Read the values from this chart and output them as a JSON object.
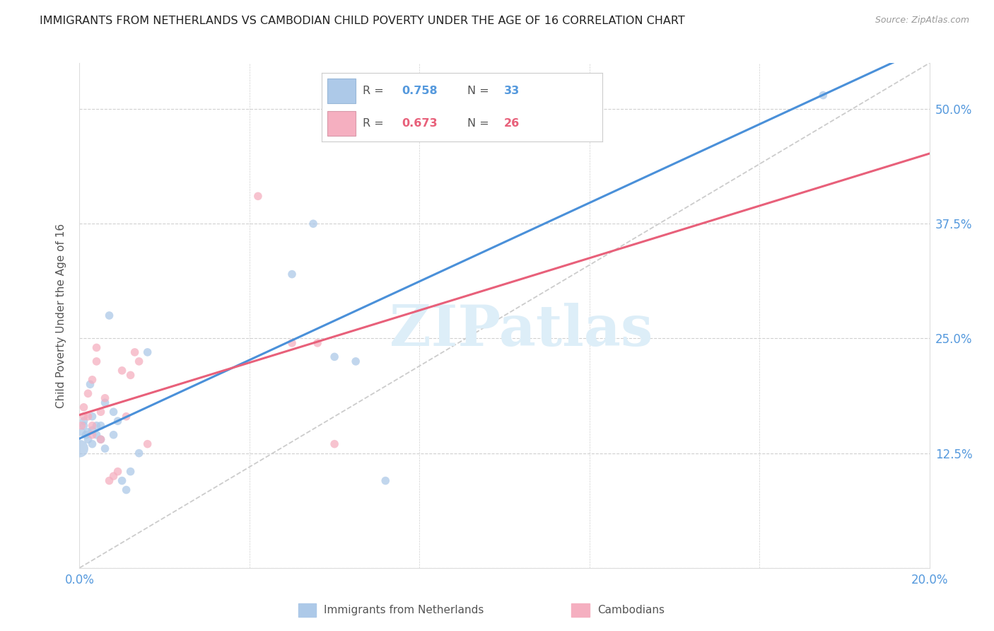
{
  "title": "IMMIGRANTS FROM NETHERLANDS VS CAMBODIAN CHILD POVERTY UNDER THE AGE OF 16 CORRELATION CHART",
  "source": "Source: ZipAtlas.com",
  "ylabel": "Child Poverty Under the Age of 16",
  "legend_label1": "Immigrants from Netherlands",
  "legend_label2": "Cambodians",
  "r1": "0.758",
  "n1": "33",
  "r2": "0.673",
  "n2": "26",
  "color1": "#adc9e8",
  "color2": "#f5afc0",
  "line_color1": "#4a90d9",
  "line_color2": "#e8607a",
  "axis_tick_color": "#5599dd",
  "background_color": "#ffffff",
  "grid_color": "#d0d0d0",
  "xlim": [
    0.0,
    0.2
  ],
  "ylim": [
    0.0,
    0.55
  ],
  "ytick_vals": [
    0.0,
    0.125,
    0.25,
    0.375,
    0.5
  ],
  "ytick_labels": [
    "",
    "12.5%",
    "25.0%",
    "37.5%",
    "50.0%"
  ],
  "xtick_vals": [
    0.0,
    0.04,
    0.08,
    0.12,
    0.16,
    0.2
  ],
  "xtick_labels": [
    "0.0%",
    "",
    "",
    "",
    "",
    "20.0%"
  ],
  "blue_x": [
    0.0005,
    0.001,
    0.001,
    0.0015,
    0.002,
    0.002,
    0.0025,
    0.003,
    0.003,
    0.003,
    0.004,
    0.004,
    0.005,
    0.005,
    0.006,
    0.006,
    0.007,
    0.008,
    0.008,
    0.009,
    0.01,
    0.011,
    0.012,
    0.014,
    0.016,
    0.05,
    0.055,
    0.06,
    0.065,
    0.072,
    0.11,
    0.175,
    0.0
  ],
  "blue_y": [
    0.148,
    0.155,
    0.16,
    0.145,
    0.14,
    0.148,
    0.2,
    0.135,
    0.15,
    0.165,
    0.145,
    0.155,
    0.14,
    0.155,
    0.13,
    0.18,
    0.275,
    0.145,
    0.17,
    0.16,
    0.095,
    0.085,
    0.105,
    0.125,
    0.235,
    0.32,
    0.375,
    0.23,
    0.225,
    0.095,
    0.48,
    0.515,
    0.13
  ],
  "blue_sizes": [
    70,
    70,
    70,
    70,
    70,
    70,
    70,
    70,
    70,
    70,
    70,
    70,
    70,
    70,
    70,
    70,
    70,
    70,
    70,
    70,
    70,
    70,
    70,
    70,
    70,
    70,
    70,
    70,
    70,
    70,
    70,
    70,
    320
  ],
  "pink_x": [
    0.0005,
    0.001,
    0.001,
    0.002,
    0.002,
    0.003,
    0.003,
    0.003,
    0.004,
    0.004,
    0.005,
    0.005,
    0.006,
    0.007,
    0.008,
    0.009,
    0.01,
    0.011,
    0.012,
    0.013,
    0.014,
    0.016,
    0.042,
    0.05,
    0.056,
    0.06
  ],
  "pink_y": [
    0.155,
    0.165,
    0.175,
    0.165,
    0.19,
    0.145,
    0.155,
    0.205,
    0.225,
    0.24,
    0.14,
    0.17,
    0.185,
    0.095,
    0.1,
    0.105,
    0.215,
    0.165,
    0.21,
    0.235,
    0.225,
    0.135,
    0.405,
    0.245,
    0.245,
    0.135
  ],
  "pink_sizes": [
    70,
    70,
    70,
    70,
    70,
    70,
    70,
    70,
    70,
    70,
    70,
    70,
    70,
    70,
    70,
    70,
    70,
    70,
    70,
    70,
    70,
    70,
    70,
    70,
    70,
    70
  ],
  "watermark_text": "ZIPatlas",
  "watermark_color": "#ddeef8",
  "diag_line_color": "#cccccc"
}
